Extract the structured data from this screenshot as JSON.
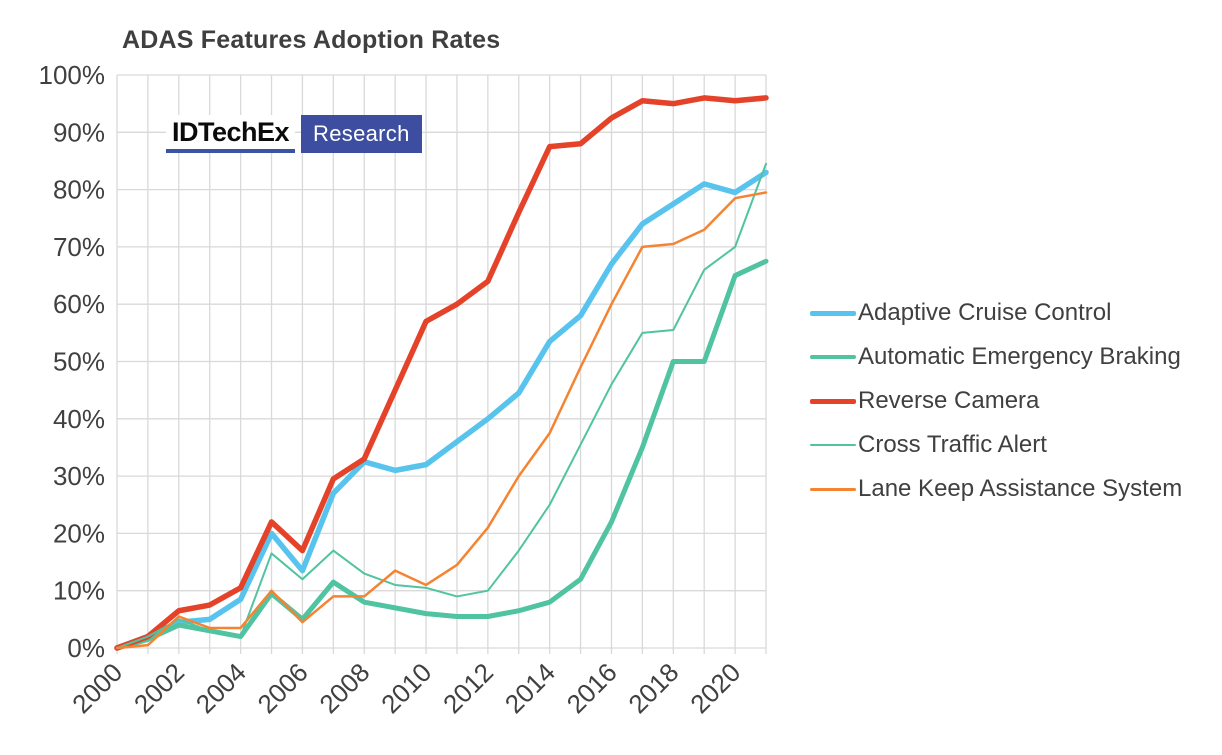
{
  "page": {
    "background": "#ffffff",
    "text_color": "#404040"
  },
  "header": {
    "title": "ADAS Features Adoption Rates"
  },
  "logo": {
    "brand": "IDTechEx",
    "sub": "Research",
    "underline_color": "#3c53a4",
    "box_color": "#3d4ea0"
  },
  "chart_data": {
    "type": "line",
    "title": "ADAS Features Adoption Rates",
    "x": [
      2000,
      2001,
      2002,
      2003,
      2004,
      2005,
      2006,
      2007,
      2008,
      2009,
      2010,
      2011,
      2012,
      2013,
      2014,
      2015,
      2016,
      2017,
      2018,
      2019,
      2020,
      2021
    ],
    "x_tick_labels": [
      "2000",
      "2002",
      "2004",
      "2006",
      "2008",
      "2010",
      "2012",
      "2014",
      "2016",
      "2018",
      "2020"
    ],
    "y_ticks": [
      0,
      10,
      20,
      30,
      40,
      50,
      60,
      70,
      80,
      90,
      100
    ],
    "y_tick_labels": [
      "0%",
      "10%",
      "20%",
      "30%",
      "40%",
      "50%",
      "60%",
      "70%",
      "80%",
      "90%",
      "100%"
    ],
    "xlabel": "",
    "ylabel": "",
    "ylim": [
      0,
      100
    ],
    "grid": true,
    "grid_color": "#d9d9d9",
    "text_color": "#404040",
    "legend_position": "right",
    "series": [
      {
        "name": "Adaptive Cruise Control",
        "color": "#58c4ee",
        "stroke_width": 5.5,
        "legend_stroke": 5,
        "values": [
          0,
          2,
          4.5,
          5,
          8.5,
          20,
          13.5,
          27,
          32.5,
          31,
          32,
          36,
          40,
          44.5,
          53.5,
          58,
          67,
          74,
          77.5,
          81,
          79.5,
          83
        ]
      },
      {
        "name": "Automatic Emergency Braking",
        "color": "#50c3a1",
        "stroke_width": 5,
        "legend_stroke": 4,
        "values": [
          0,
          1.5,
          4,
          3,
          2,
          9.5,
          5,
          11.5,
          8,
          7,
          6,
          5.5,
          5.5,
          6.5,
          8,
          12,
          22,
          35,
          50,
          50,
          65,
          67.5
        ]
      },
      {
        "name": "Reverse Camera",
        "color": "#e4432a",
        "stroke_width": 5.5,
        "legend_stroke": 5,
        "values": [
          0,
          2,
          6.5,
          7.5,
          10.5,
          22,
          17,
          29.5,
          33,
          45,
          57,
          60,
          64,
          76,
          87.5,
          88,
          92.5,
          95.5,
          95,
          96,
          95.5,
          96
        ]
      },
      {
        "name": "Cross Traffic Alert",
        "color": "#50c3a1",
        "stroke_width": 2,
        "legend_stroke": 2,
        "values": [
          0,
          2,
          5,
          3,
          2,
          16.5,
          12,
          17,
          13,
          11,
          10.5,
          9,
          10,
          17,
          25,
          35.5,
          46,
          55,
          55.5,
          66,
          70,
          84.5
        ]
      },
      {
        "name": "Lane Keep Assistance System",
        "color": "#f58432",
        "stroke_width": 2.5,
        "legend_stroke": 3,
        "values": [
          0,
          0.5,
          5.5,
          3.5,
          3.5,
          10,
          4.5,
          9,
          9,
          13.5,
          11,
          14.5,
          21,
          30,
          37.5,
          49,
          60,
          70,
          70.5,
          73,
          78.5,
          79.5
        ]
      }
    ]
  }
}
